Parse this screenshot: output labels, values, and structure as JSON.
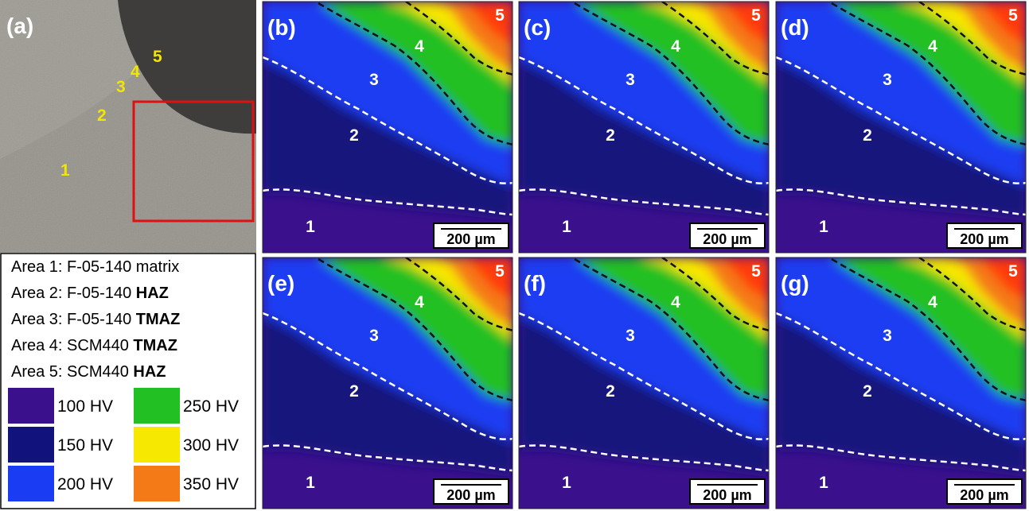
{
  "panel_a": {
    "label": "(a)",
    "area_numbers": [
      "1",
      "2",
      "3",
      "4",
      "5"
    ]
  },
  "areas": [
    {
      "text": "Area 1: F-05-140 matrix"
    },
    {
      "text": "Area 2: F-05-140",
      "bold": "HAZ"
    },
    {
      "text": "Area 3: F-05-140",
      "bold": "TMAZ"
    },
    {
      "text": "Area 4: SCM440",
      "bold": "TMAZ"
    },
    {
      "text": "Area 5: SCM440",
      "bold": "HAZ"
    }
  ],
  "hardness_legend": [
    {
      "label": "100 HV",
      "color": "#3a108c"
    },
    {
      "label": "150 HV",
      "color": "#12127c"
    },
    {
      "label": "200 HV",
      "color": "#1a3cf2"
    },
    {
      "label": "250 HV",
      "color": "#22c022"
    },
    {
      "label": "300 HV",
      "color": "#f6e800"
    },
    {
      "label": "350 HV",
      "color": "#f47a18"
    }
  ],
  "maps": [
    {
      "label": "(b)",
      "zones": [
        "1",
        "2",
        "3",
        "4",
        "5"
      ],
      "scale_bar": "200 µm"
    },
    {
      "label": "(c)",
      "zones": [
        "1",
        "2",
        "3",
        "4",
        "5"
      ],
      "scale_bar": "200 µm"
    },
    {
      "label": "(d)",
      "zones": [
        "1",
        "2",
        "3",
        "4",
        "5"
      ],
      "scale_bar": "200 µm"
    },
    {
      "label": "(e)",
      "zones": [
        "1",
        "2",
        "3",
        "4",
        "5"
      ],
      "scale_bar": "200 µm"
    },
    {
      "label": "(f)",
      "zones": [
        "1",
        "2",
        "3",
        "4",
        "5"
      ],
      "scale_bar": "200 µm"
    },
    {
      "label": "(g)",
      "zones": [
        "1",
        "2",
        "3",
        "4",
        "5"
      ],
      "scale_bar": "200 µm"
    }
  ]
}
